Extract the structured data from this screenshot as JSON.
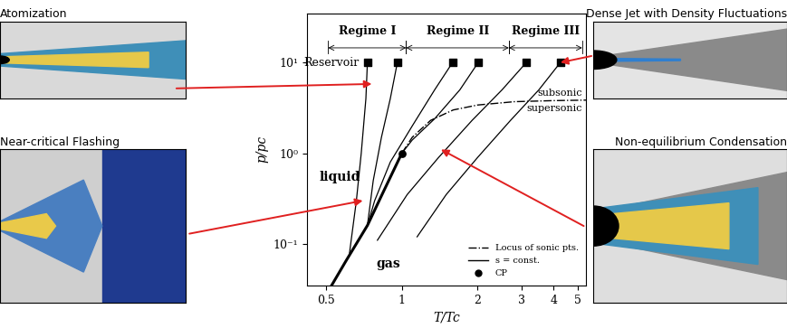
{
  "chart_data": {
    "type": "line",
    "x_label": "T/Tc",
    "y_label": "p/pc",
    "log": true,
    "grid": false,
    "legend": "lower right",
    "xlim": [
      0.42,
      5.4
    ],
    "ylim": [
      0.035,
      35
    ],
    "xticks": [
      0.5,
      1,
      2,
      3,
      4,
      5
    ],
    "yticks": [
      {
        "value": 0.1,
        "label": "10⁻¹"
      },
      {
        "value": 1,
        "label": "10⁰"
      },
      {
        "value": 10,
        "label": "10¹"
      }
    ],
    "series": [
      {
        "name": "Locus of sonic pts.",
        "type": "line",
        "line_style": "dashdot",
        "color": "#000000",
        "x": [
          1.0,
          1.1,
          1.3,
          1.6,
          2.0,
          2.8,
          4.0,
          5.4
        ],
        "y": [
          1.0,
          1.5,
          2.3,
          3.0,
          3.4,
          3.7,
          3.8,
          3.85
        ]
      },
      {
        "name": "s = const.",
        "type": "line",
        "line_style": "solid",
        "color": "#000000",
        "lines": [
          {
            "x": [
              0.73,
              0.72,
              0.69,
              0.66,
              0.62
            ],
            "y": [
              10,
              4,
              1,
              0.3,
              0.08
            ]
          },
          {
            "x": [
              0.96,
              0.9,
              0.83,
              0.77,
              0.73
            ],
            "y": [
              10,
              4,
              1.5,
              0.5,
              0.16
            ]
          },
          {
            "x": [
              1.59,
              1.35,
              1.1,
              0.9,
              0.78,
              0.73
            ],
            "y": [
              10,
              5,
              2,
              0.8,
              0.3,
              0.16
            ]
          },
          {
            "x": [
              2.01,
              1.7,
              1.35,
              1.1,
              1.0,
              0.85,
              0.73
            ],
            "y": [
              10,
              5,
              2.4,
              1.4,
              1.0,
              0.39,
              0.16
            ]
          },
          {
            "x": [
              3.12,
              2.5,
              1.9,
              1.4,
              1.05,
              0.8
            ],
            "y": [
              10,
              5,
              2.3,
              0.9,
              0.35,
              0.11
            ]
          },
          {
            "x": [
              4.26,
              3.5,
              2.7,
              2.0,
              1.5,
              1.15
            ],
            "y": [
              10,
              5,
              2.3,
              0.9,
              0.35,
              0.12
            ]
          }
        ]
      },
      {
        "name": "CP",
        "type": "scatter",
        "marker": "circle",
        "color": "#000000",
        "x": [
          1.0
        ],
        "y": [
          1.0
        ]
      }
    ],
    "saturation_line": {
      "color": "#000000",
      "x": [
        0.52,
        0.6,
        0.73,
        0.85,
        1.0
      ],
      "y": [
        0.033,
        0.065,
        0.16,
        0.39,
        1.0
      ]
    },
    "reservoir": {
      "label": "Reservoir",
      "marker": "square",
      "color": "#000000",
      "x": [
        0.73,
        0.96,
        1.59,
        2.01,
        3.12,
        4.26
      ],
      "y": [
        10,
        10,
        10,
        10,
        10,
        10
      ]
    },
    "regimes": [
      {
        "label": "Regime I",
        "range": [
          0.51,
          1.04
        ]
      },
      {
        "label": "Regime II",
        "range": [
          1.04,
          2.66
        ]
      },
      {
        "label": "Regime III",
        "range": [
          2.66,
          5.2
        ]
      }
    ],
    "annotations": [
      {
        "text": "liquid"
      },
      {
        "text": "gas"
      },
      {
        "text": "subsonic"
      },
      {
        "text": "supersonic"
      }
    ]
  },
  "panels": [
    {
      "title": "Atomization",
      "points_to": [
        0.76,
        5.8
      ]
    },
    {
      "title": "Near-critical Flashing",
      "points_to": [
        0.7,
        0.3
      ]
    },
    {
      "title": "Dense Jet with Density Fluctuations",
      "points_to": [
        4.26,
        10
      ]
    },
    {
      "title": "Non-equilibrium Condensation",
      "points_to": [
        1.43,
        1.1
      ]
    }
  ]
}
